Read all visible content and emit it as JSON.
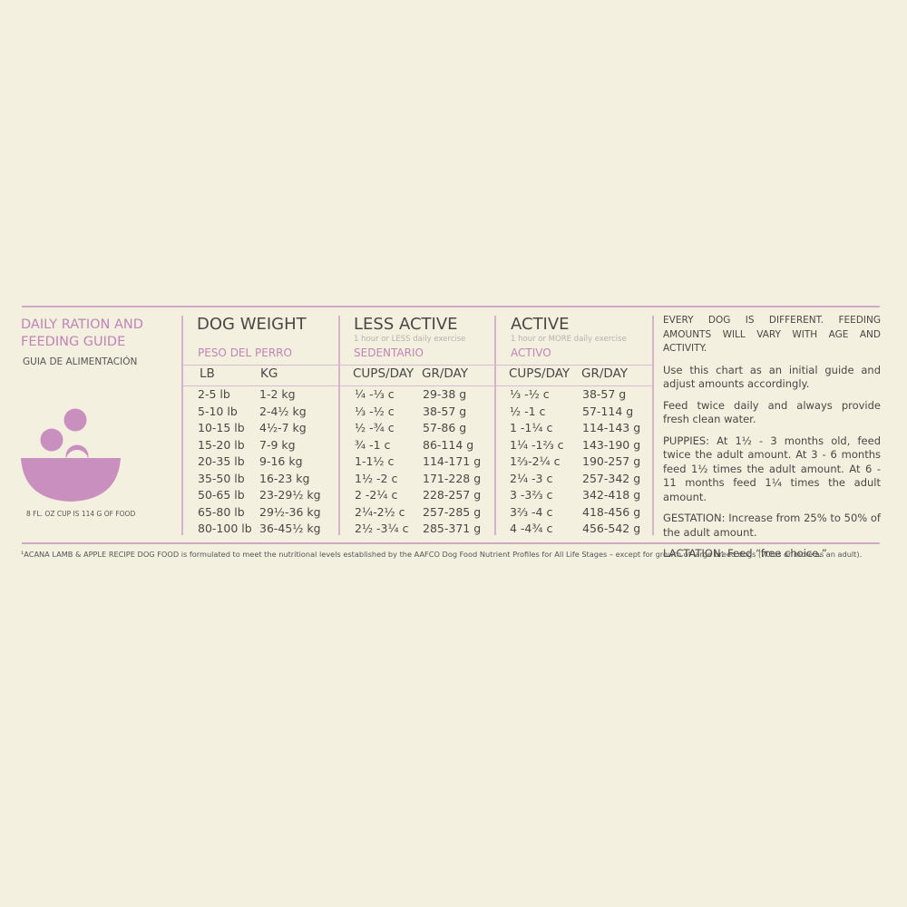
{
  "guide": {
    "title_line1": "DAILY RATION AND",
    "title_line2": "FEEDING GUIDE",
    "subtitle": "GUIA DE ALIMENTACIÓN",
    "cup_note": "8 FL. OZ CUP IS 114 G OF FOOD",
    "bowl_color": "#c98fbf"
  },
  "columns": {
    "weight": {
      "title": "DOG WEIGHT",
      "spanish": "PESO DEL PERRO",
      "h1": "LB",
      "h2": "KG"
    },
    "less_active": {
      "title": "LESS ACTIVE",
      "note": "1 hour or LESS daily exercise",
      "spanish": "SEDENTARIO",
      "h1": "CUPS/DAY",
      "h2": "GR/DAY"
    },
    "active": {
      "title": "ACTIVE",
      "note": "1 hour or MORE daily exercise",
      "spanish": "ACTIVO",
      "h1": "CUPS/DAY",
      "h2": "GR/DAY"
    }
  },
  "rows": [
    [
      "2-5 lb",
      "1-2 kg",
      "¼ -⅓ c",
      "29-38 g",
      "⅓ -½ c",
      "38-57 g"
    ],
    [
      "5-10 lb",
      "2-4½ kg",
      "⅓ -½ c",
      "38-57 g",
      "½ -1 c",
      "57-114 g"
    ],
    [
      "10-15 lb",
      "4½-7 kg",
      "½ -¾ c",
      "57-86 g",
      "1 -1¼ c",
      "114-143 g"
    ],
    [
      "15-20 lb",
      "7-9 kg",
      "¾ -1 c",
      "86-114 g",
      "1¼ -1⅔ c",
      "143-190 g"
    ],
    [
      "20-35 lb",
      "9-16 kg",
      "1-1½ c",
      "114-171 g",
      "1⅔-2¼ c",
      "190-257 g"
    ],
    [
      "35-50 lb",
      "16-23 kg",
      "1½ -2 c",
      "171-228 g",
      "2¼ -3 c",
      "257-342 g"
    ],
    [
      "50-65 lb",
      "23-29½ kg",
      "2 -2¼ c",
      "228-257 g",
      "3 -3⅔ c",
      "342-418 g"
    ],
    [
      "65-80 lb",
      "29½-36 kg",
      "2¼-2½ c",
      "257-285 g",
      "3⅔ -4 c",
      "418-456 g"
    ],
    [
      "80-100 lb",
      "36-45½ kg",
      "2½ -3¼ c",
      "285-371 g",
      "4 -4¾ c",
      "456-542 g"
    ]
  ],
  "notes": {
    "intro": "EVERY DOG IS DIFFERENT. FEEDING AMOUNTS WILL VARY WITH AGE AND ACTIVITY.",
    "chart": "Use this chart as an initial guide and adjust amounts accordingly.",
    "feed": "Feed twice daily and always provide fresh clean water.",
    "puppies": "PUPPIES: At 1½ - 3 months old, feed twice the adult amount. At 3 - 6 months feed 1½ times the adult amount. At 6 - 11 months feed 1¼ times the adult amount.",
    "gestation": "GESTATION: Increase from 25% to 50% of the adult amount.",
    "lactation": "LACTATION: Feed “free choice.”"
  },
  "footnote": "¹ACANA LAMB & APPLE RECIPE DOG FOOD is formulated to meet the nutritional levels established by the AAFCO Dog Food Nutrient Profiles for All Life Stages – except for growth of large breed dogs (70lbs or more as an adult)."
}
